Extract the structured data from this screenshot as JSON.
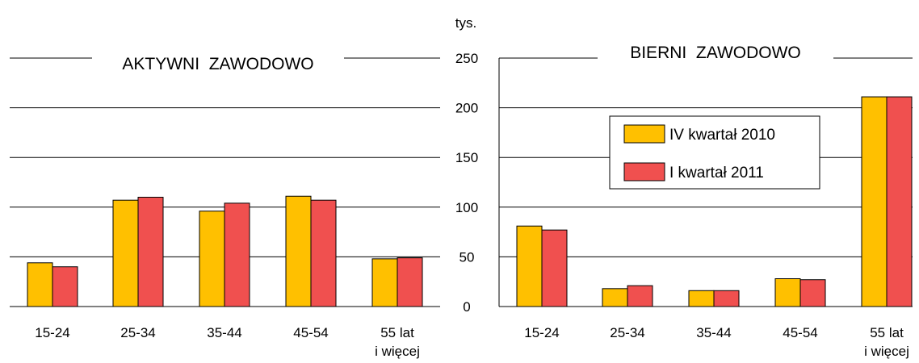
{
  "chart_data": {
    "type": "bar",
    "unit": "tys.",
    "ylim": [
      0,
      250
    ],
    "yticks": [
      0,
      50,
      100,
      150,
      200,
      250
    ],
    "grid": true,
    "categories": [
      {
        "line1": "15-24",
        "line2": ""
      },
      {
        "line1": "25-34",
        "line2": ""
      },
      {
        "line1": "35-44",
        "line2": ""
      },
      {
        "line1": "45-54",
        "line2": ""
      },
      {
        "line1": "55 lat",
        "line2": "i więcej"
      }
    ],
    "legend": {
      "placement": "right panel, upper middle",
      "items": [
        {
          "label": "IV kwartał 2010",
          "color": "#FFC000"
        },
        {
          "label": "I kwartał 2011",
          "color": "#F0504F"
        }
      ]
    },
    "panels": [
      {
        "title": "AKTYWNI  ZAWODOWO",
        "series": [
          {
            "name": "IV kwartał 2010",
            "values": [
              44,
              107,
              96,
              111,
              48
            ]
          },
          {
            "name": "I kwartał 2011",
            "values": [
              40,
              110,
              104,
              107,
              49
            ]
          }
        ]
      },
      {
        "title": "BIERNI  ZAWODOWO",
        "series": [
          {
            "name": "IV kwartał 2010",
            "values": [
              81,
              18,
              16,
              28,
              211
            ]
          },
          {
            "name": "I kwartał 2011",
            "values": [
              77,
              21,
              16,
              27,
              211
            ]
          }
        ]
      }
    ]
  }
}
